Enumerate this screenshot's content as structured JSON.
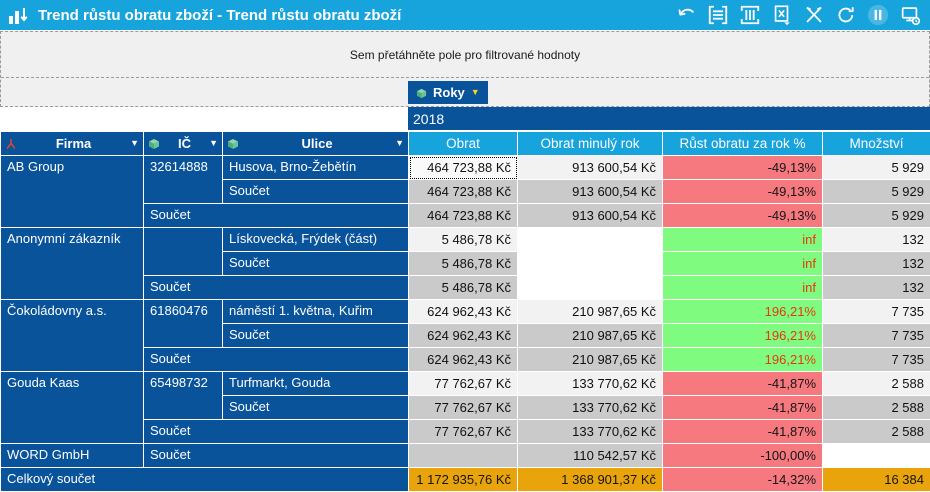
{
  "titlebar": {
    "title": "Trend růstu obratu zboží - Trend růstu obratu zboží",
    "icons": [
      "undo-icon",
      "collapse-rows-icon",
      "collapse-columns-icon",
      "excel-export-icon",
      "design-mode-icon",
      "refresh-icon",
      "pause-icon",
      "connection-status-icon"
    ]
  },
  "filter_zone": {
    "placeholder": "Sem přetáhněte pole pro filtrované hodnoty"
  },
  "column_zone": {
    "field_label": "Roky"
  },
  "year_header": "2018",
  "table": {
    "row_headers": [
      {
        "label": "Firma"
      },
      {
        "label": "IČ"
      },
      {
        "label": "Ulice"
      }
    ],
    "value_headers": [
      {
        "label": "Obrat"
      },
      {
        "label": "Obrat minulý rok"
      },
      {
        "label": "Růst obratu za rok %"
      },
      {
        "label": "Množství"
      }
    ],
    "rows": [
      {
        "cells": [
          {
            "t": "AB Group",
            "cls": "rh",
            "rs": 3
          },
          {
            "t": "32614888",
            "cls": "rh",
            "rs": 2
          },
          {
            "t": "Husova, Brno-Žebětín",
            "cls": "rh"
          },
          {
            "t": "464 723,88 Kč",
            "cls": "v l focus"
          },
          {
            "t": "913 600,54 Kč",
            "cls": "v l"
          },
          {
            "t": "-49,13%",
            "cls": "v neg"
          },
          {
            "t": "5 929",
            "cls": "v l"
          }
        ]
      },
      {
        "cells": [
          {
            "t": "Součet",
            "cls": "rh"
          },
          {
            "t": "464 723,88 Kč",
            "cls": "v g"
          },
          {
            "t": "913 600,54 Kč",
            "cls": "v g"
          },
          {
            "t": "-49,13%",
            "cls": "v neg"
          },
          {
            "t": "5 929",
            "cls": "v g"
          }
        ]
      },
      {
        "cells": [
          {
            "t": "Součet",
            "cls": "rh",
            "cs": 2
          },
          {
            "t": "464 723,88 Kč",
            "cls": "v g"
          },
          {
            "t": "913 600,54 Kč",
            "cls": "v g"
          },
          {
            "t": "-49,13%",
            "cls": "v neg"
          },
          {
            "t": "5 929",
            "cls": "v g"
          }
        ]
      },
      {
        "cells": [
          {
            "t": "Anonymní zákazník",
            "cls": "rh",
            "rs": 3
          },
          {
            "t": "",
            "cls": "rh",
            "rs": 2
          },
          {
            "t": "Lískovecká, Frýdek (část)",
            "cls": "rh"
          },
          {
            "t": "5 486,78 Kč",
            "cls": "v l"
          },
          {
            "t": "",
            "cls": "v w"
          },
          {
            "t": "inf",
            "cls": "v pos"
          },
          {
            "t": "132",
            "cls": "v l"
          }
        ]
      },
      {
        "cells": [
          {
            "t": "Součet",
            "cls": "rh"
          },
          {
            "t": "5 486,78 Kč",
            "cls": "v g"
          },
          {
            "t": "",
            "cls": "v w"
          },
          {
            "t": "inf",
            "cls": "v pos"
          },
          {
            "t": "132",
            "cls": "v g"
          }
        ]
      },
      {
        "cells": [
          {
            "t": "Součet",
            "cls": "rh",
            "cs": 2
          },
          {
            "t": "5 486,78 Kč",
            "cls": "v g"
          },
          {
            "t": "",
            "cls": "v w"
          },
          {
            "t": "inf",
            "cls": "v pos"
          },
          {
            "t": "132",
            "cls": "v g"
          }
        ]
      },
      {
        "cells": [
          {
            "t": "Čokoládovny a.s.",
            "cls": "rh",
            "rs": 3
          },
          {
            "t": "61860476",
            "cls": "rh",
            "rs": 2
          },
          {
            "t": "náměstí 1. května, Kuřim",
            "cls": "rh"
          },
          {
            "t": "624 962,43 Kč",
            "cls": "v l"
          },
          {
            "t": "210 987,65 Kč",
            "cls": "v l"
          },
          {
            "t": "196,21%",
            "cls": "v pos"
          },
          {
            "t": "7 735",
            "cls": "v l"
          }
        ]
      },
      {
        "cells": [
          {
            "t": "Součet",
            "cls": "rh"
          },
          {
            "t": "624 962,43 Kč",
            "cls": "v g"
          },
          {
            "t": "210 987,65 Kč",
            "cls": "v g"
          },
          {
            "t": "196,21%",
            "cls": "v pos"
          },
          {
            "t": "7 735",
            "cls": "v g"
          }
        ]
      },
      {
        "cells": [
          {
            "t": "Součet",
            "cls": "rh",
            "cs": 2
          },
          {
            "t": "624 962,43 Kč",
            "cls": "v g"
          },
          {
            "t": "210 987,65 Kč",
            "cls": "v g"
          },
          {
            "t": "196,21%",
            "cls": "v pos"
          },
          {
            "t": "7 735",
            "cls": "v g"
          }
        ]
      },
      {
        "cells": [
          {
            "t": "Gouda Kaas",
            "cls": "rh",
            "rs": 3
          },
          {
            "t": "65498732",
            "cls": "rh",
            "rs": 2
          },
          {
            "t": "Turfmarkt, Gouda",
            "cls": "rh"
          },
          {
            "t": "77 762,67 Kč",
            "cls": "v l"
          },
          {
            "t": "133 770,62 Kč",
            "cls": "v l"
          },
          {
            "t": "-41,87%",
            "cls": "v neg"
          },
          {
            "t": "2 588",
            "cls": "v l"
          }
        ]
      },
      {
        "cells": [
          {
            "t": "Součet",
            "cls": "rh"
          },
          {
            "t": "77 762,67 Kč",
            "cls": "v g"
          },
          {
            "t": "133 770,62 Kč",
            "cls": "v g"
          },
          {
            "t": "-41,87%",
            "cls": "v neg"
          },
          {
            "t": "2 588",
            "cls": "v g"
          }
        ]
      },
      {
        "cells": [
          {
            "t": "Součet",
            "cls": "rh",
            "cs": 2
          },
          {
            "t": "77 762,67 Kč",
            "cls": "v g"
          },
          {
            "t": "133 770,62 Kč",
            "cls": "v g"
          },
          {
            "t": "-41,87%",
            "cls": "v neg"
          },
          {
            "t": "2 588",
            "cls": "v g"
          }
        ]
      },
      {
        "cells": [
          {
            "t": "WORD GmbH",
            "cls": "rh"
          },
          {
            "t": "Součet",
            "cls": "rh",
            "cs": 2
          },
          {
            "t": "",
            "cls": "v g"
          },
          {
            "t": "110 542,57 Kč",
            "cls": "v g"
          },
          {
            "t": "-100,00%",
            "cls": "v neg"
          },
          {
            "t": "",
            "cls": "v w"
          }
        ]
      },
      {
        "cells": [
          {
            "t": "Celkový součet",
            "cls": "rh",
            "cs": 3
          },
          {
            "t": "1 172 935,76 Kč",
            "cls": "v tot"
          },
          {
            "t": "1 368 901,37 Kč",
            "cls": "v tot"
          },
          {
            "t": "-14,32%",
            "cls": "v neg"
          },
          {
            "t": "16 384",
            "cls": "v tot"
          }
        ]
      }
    ]
  },
  "colors": {
    "titlebar": "#17A3DC",
    "header_dark_blue": "#09539B",
    "header_light_blue": "#17A3DC",
    "total_bg": "#E9A40B",
    "negative_bg": "#F5797E",
    "positive_bg": "#7FFB7F",
    "positive_text": "#E8380D",
    "row_light": "#F2F2F2",
    "row_gray": "#CACACA",
    "dropzone_bg": "#F0F0F0"
  }
}
